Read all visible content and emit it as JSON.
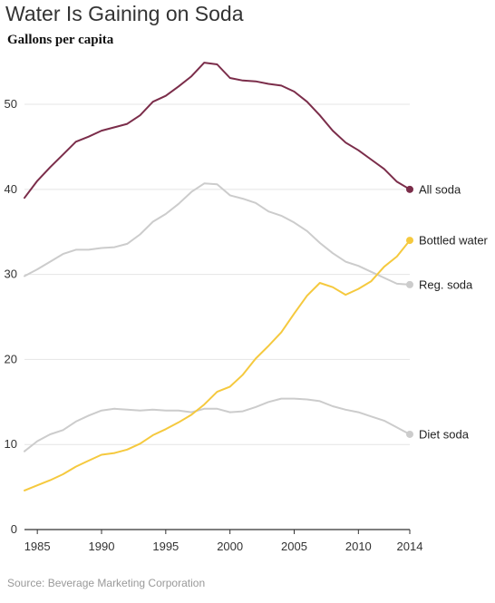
{
  "title": "Water Is Gaining on Soda",
  "subtitle": "Gallons per capita",
  "source": "Source: Beverage Marketing Corporation",
  "chart_data": {
    "type": "line",
    "title": "Water Is Gaining on Soda",
    "ylabel": "Gallons per capita",
    "xlim": [
      1984,
      2014
    ],
    "ylim": [
      0,
      58
    ],
    "yticks": [
      0,
      10,
      20,
      30,
      40,
      50
    ],
    "xticks": [
      1985,
      1990,
      1995,
      2000,
      2005,
      2010,
      2014
    ],
    "grid": true,
    "legend": "end-of-line labels",
    "x": [
      1984,
      1985,
      1986,
      1987,
      1988,
      1989,
      1990,
      1991,
      1992,
      1993,
      1994,
      1995,
      1996,
      1997,
      1998,
      1999,
      2000,
      2001,
      2002,
      2003,
      2004,
      2005,
      2006,
      2007,
      2008,
      2009,
      2010,
      2011,
      2012,
      2013,
      2014
    ],
    "series": [
      {
        "name": "All soda",
        "color": "#7b2d4a",
        "values": [
          39.0,
          41.0,
          42.6,
          44.1,
          45.6,
          46.2,
          46.9,
          47.3,
          47.7,
          48.7,
          50.3,
          51.0,
          52.1,
          53.3,
          54.9,
          54.7,
          53.1,
          52.8,
          52.7,
          52.4,
          52.2,
          51.5,
          50.3,
          48.7,
          46.9,
          45.5,
          44.6,
          43.5,
          42.4,
          40.9,
          40.0
        ]
      },
      {
        "name": "Bottled water",
        "color": "#f5c93e",
        "values": [
          4.6,
          5.2,
          5.8,
          6.5,
          7.4,
          8.1,
          8.8,
          9.0,
          9.4,
          10.1,
          11.1,
          11.8,
          12.6,
          13.5,
          14.7,
          16.2,
          16.8,
          18.2,
          20.1,
          21.6,
          23.2,
          25.4,
          27.5,
          29.0,
          28.5,
          27.6,
          28.3,
          29.2,
          30.9,
          32.1,
          34.0
        ]
      },
      {
        "name": "Reg. soda",
        "color": "#cccccc",
        "values": [
          29.8,
          30.6,
          31.5,
          32.4,
          32.9,
          32.9,
          33.1,
          33.2,
          33.6,
          34.7,
          36.2,
          37.1,
          38.3,
          39.7,
          40.7,
          40.6,
          39.3,
          38.9,
          38.4,
          37.4,
          36.9,
          36.1,
          35.1,
          33.7,
          32.5,
          31.5,
          31.0,
          30.3,
          29.6,
          28.9,
          28.8
        ]
      },
      {
        "name": "Diet soda",
        "color": "#cccccc",
        "values": [
          9.2,
          10.4,
          11.2,
          11.7,
          12.7,
          13.4,
          14.0,
          14.2,
          14.1,
          14.0,
          14.1,
          14.0,
          14.0,
          13.8,
          14.2,
          14.2,
          13.8,
          13.9,
          14.4,
          15.0,
          15.4,
          15.4,
          15.3,
          15.1,
          14.5,
          14.1,
          13.8,
          13.3,
          12.8,
          12.0,
          11.2
        ]
      }
    ]
  }
}
